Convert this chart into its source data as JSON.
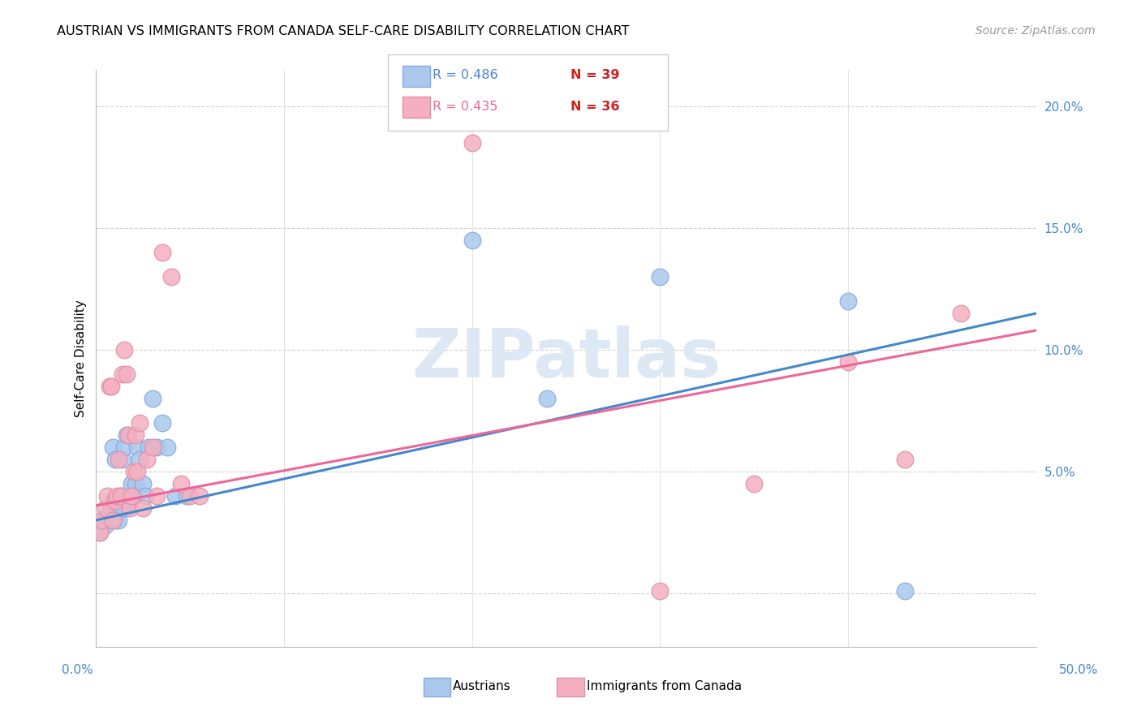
{
  "title": "AUSTRIAN VS IMMIGRANTS FROM CANADA SELF-CARE DISABILITY CORRELATION CHART",
  "source": "Source: ZipAtlas.com",
  "ylabel": "Self-Care Disability",
  "xlim": [
    0.0,
    0.5
  ],
  "ylim": [
    -0.022,
    0.215
  ],
  "yticks": [
    0.0,
    0.05,
    0.1,
    0.15,
    0.2
  ],
  "ytick_labels": [
    "",
    "5.0%",
    "10.0%",
    "15.0%",
    "20.0%"
  ],
  "xtick_labels": [
    "0.0%",
    "50.0%"
  ],
  "legend_r1": "R = 0.486",
  "legend_n1": "N = 39",
  "legend_r2": "R = 0.435",
  "legend_n2": "N = 36",
  "austrians_color": "#aac8ee",
  "immigrants_color": "#f4b0c0",
  "austrians_edge": "#88aadd",
  "immigrants_edge": "#e090a8",
  "line_austrians": "#4488cc",
  "line_immigrants": "#ee6699",
  "r_color_blue": "#4488cc",
  "r_color_pink": "#ee6699",
  "n_color": "#cc2222",
  "watermark_color": "#dde8f5",
  "austrians_x": [
    0.002,
    0.004,
    0.005,
    0.006,
    0.007,
    0.008,
    0.009,
    0.009,
    0.01,
    0.01,
    0.011,
    0.012,
    0.012,
    0.013,
    0.014,
    0.015,
    0.015,
    0.016,
    0.017,
    0.018,
    0.019,
    0.02,
    0.021,
    0.022,
    0.023,
    0.025,
    0.026,
    0.028,
    0.03,
    0.032,
    0.035,
    0.038,
    0.042,
    0.048,
    0.2,
    0.24,
    0.3,
    0.4,
    0.43
  ],
  "austrians_y": [
    0.025,
    0.03,
    0.028,
    0.032,
    0.03,
    0.035,
    0.038,
    0.06,
    0.055,
    0.03,
    0.035,
    0.03,
    0.035,
    0.04,
    0.055,
    0.06,
    0.035,
    0.065,
    0.038,
    0.04,
    0.045,
    0.04,
    0.045,
    0.06,
    0.055,
    0.045,
    0.04,
    0.06,
    0.08,
    0.06,
    0.07,
    0.06,
    0.04,
    0.04,
    0.145,
    0.08,
    0.13,
    0.12,
    0.001
  ],
  "immigrants_x": [
    0.002,
    0.003,
    0.005,
    0.006,
    0.007,
    0.008,
    0.009,
    0.01,
    0.011,
    0.012,
    0.013,
    0.014,
    0.015,
    0.016,
    0.017,
    0.018,
    0.019,
    0.02,
    0.021,
    0.022,
    0.023,
    0.025,
    0.027,
    0.03,
    0.032,
    0.035,
    0.04,
    0.045,
    0.05,
    0.055,
    0.2,
    0.3,
    0.35,
    0.4,
    0.43,
    0.46
  ],
  "immigrants_y": [
    0.025,
    0.03,
    0.035,
    0.04,
    0.085,
    0.085,
    0.03,
    0.038,
    0.04,
    0.055,
    0.04,
    0.09,
    0.1,
    0.09,
    0.065,
    0.035,
    0.04,
    0.05,
    0.065,
    0.05,
    0.07,
    0.035,
    0.055,
    0.06,
    0.04,
    0.14,
    0.13,
    0.045,
    0.04,
    0.04,
    0.185,
    0.001,
    0.045,
    0.095,
    0.055,
    0.115
  ],
  "line_x_start": 0.0,
  "line_x_end": 0.5,
  "line_blue_y_start": 0.03,
  "line_blue_y_end": 0.115,
  "line_pink_y_start": 0.036,
  "line_pink_y_end": 0.108
}
